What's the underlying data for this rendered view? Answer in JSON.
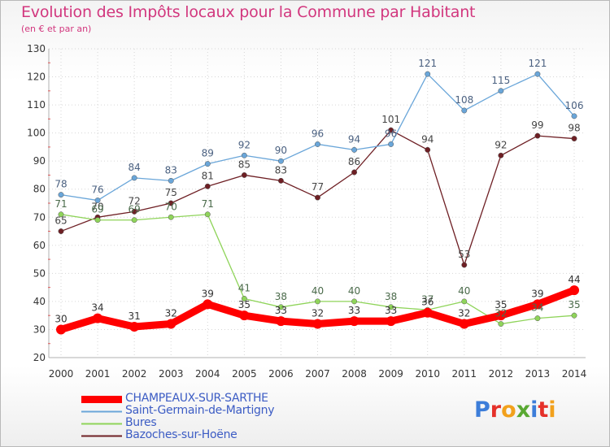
{
  "header": {
    "title": "Evolution des Impôts locaux pour la Commune par Habitant",
    "subtitle": "(en € et par an)"
  },
  "logo": {
    "text": "Proxiti",
    "colors": [
      "#3c7dd9",
      "#e5312a",
      "#f2a11c",
      "#59a832",
      "#3c7dd9",
      "#e5312a",
      "#f2a11c"
    ]
  },
  "chart_data": {
    "type": "line",
    "title": "Evolution des Impôts locaux pour la Commune par Habitant",
    "subtitle": "(en € et par an)",
    "xlabel": "",
    "ylabel": "",
    "x": [
      "2000",
      "2001",
      "2002",
      "2003",
      "2004",
      "2005",
      "2006",
      "2007",
      "2008",
      "2009",
      "2010",
      "2011",
      "2012",
      "2013",
      "2014"
    ],
    "ylim": [
      20,
      130
    ],
    "yticks": [
      "20",
      "30",
      "40",
      "50",
      "60",
      "70",
      "80",
      "90",
      "100",
      "110",
      "120",
      "130"
    ],
    "grid": true,
    "legend_position": "bottom-left",
    "series": [
      {
        "name": "CHAMPEAUX-SUR-SARTHE",
        "color": "#ff0000",
        "values": [
          30,
          34,
          31,
          32,
          39,
          35,
          33,
          32,
          33,
          33,
          36,
          32,
          35,
          39,
          44
        ],
        "labels": [
          "30",
          "34",
          "31",
          "32",
          "39",
          "35",
          "33",
          "32",
          "33",
          "33",
          "36",
          "32",
          "35",
          "39",
          "44"
        ]
      },
      {
        "name": "Saint-Germain-de-Martigny",
        "color": "#6aa6d9",
        "values": [
          78,
          76,
          84,
          83,
          89,
          92,
          90,
          96,
          94,
          96,
          121,
          108,
          115,
          121,
          106
        ],
        "labels": [
          "78",
          "76",
          "84",
          "83",
          "89",
          "92",
          "90",
          "96",
          "94",
          "96",
          "121",
          "108",
          "115",
          "121",
          "106"
        ]
      },
      {
        "name": "Bures",
        "color": "#8fd45a",
        "values": [
          71,
          69,
          69,
          70,
          71,
          41,
          38,
          40,
          40,
          38,
          37,
          40,
          32,
          34,
          35
        ],
        "labels": [
          "71",
          "69",
          "69",
          "70",
          "71",
          "41",
          "38",
          "40",
          "40",
          "38",
          "37",
          "40",
          "32",
          "34",
          "35"
        ]
      },
      {
        "name": "Bazoches-sur-Hoëne",
        "color": "#6e1f24",
        "values": [
          65,
          70,
          72,
          75,
          81,
          85,
          83,
          77,
          86,
          101,
          94,
          53,
          92,
          99,
          98
        ],
        "labels": [
          "65",
          "70",
          "72",
          "75",
          "81",
          "85",
          "83",
          "77",
          "86",
          "101",
          "94",
          "53",
          "92",
          "99",
          "98"
        ]
      }
    ]
  }
}
